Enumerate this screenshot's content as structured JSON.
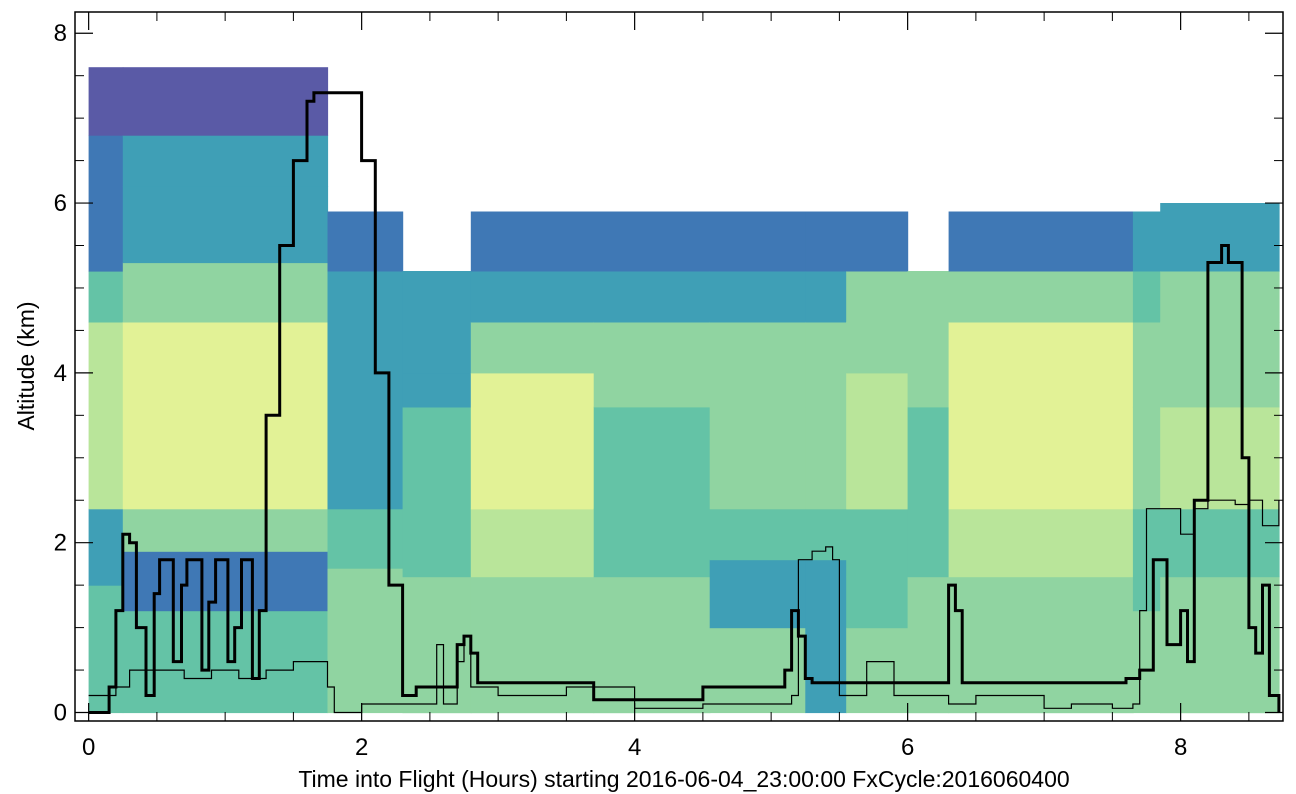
{
  "chart_data": {
    "type": "heatmap",
    "title": "",
    "xlabel": "Time into Flight (Hours) starting 2016-06-04_23:00:00  FxCycle:2016060400",
    "ylabel": "Altitude (km)",
    "xlim": [
      -0.1,
      8.75
    ],
    "ylim": [
      -0.1,
      8.25
    ],
    "x_ticks": [
      0,
      2,
      4,
      6,
      8
    ],
    "y_ticks": [
      0,
      2,
      4,
      6,
      8
    ],
    "colormap": [
      "#f3fab3",
      "#e2f296",
      "#b9e59a",
      "#90d4a1",
      "#64c3a6",
      "#3f9fb6",
      "#3f78b5",
      "#5a5aa6"
    ],
    "heatmap_columns": [
      {
        "x0": 0.0,
        "x1": 0.25,
        "bands": [
          [
            0.0,
            1.5,
            4
          ],
          [
            1.5,
            2.4,
            5
          ],
          [
            2.4,
            4.6,
            2
          ],
          [
            4.6,
            5.2,
            4
          ],
          [
            5.2,
            6.8,
            6
          ],
          [
            6.8,
            7.6,
            7
          ]
        ]
      },
      {
        "x0": 0.25,
        "x1": 1.75,
        "bands": [
          [
            0.0,
            1.2,
            4
          ],
          [
            1.2,
            1.9,
            6
          ],
          [
            1.9,
            2.4,
            3
          ],
          [
            2.4,
            4.6,
            1
          ],
          [
            4.6,
            5.3,
            3
          ],
          [
            5.3,
            6.2,
            5
          ],
          [
            6.2,
            6.8,
            5
          ],
          [
            6.8,
            7.6,
            7
          ]
        ]
      },
      {
        "x0": 1.75,
        "x1": 2.3,
        "bands": [
          [
            0.0,
            1.7,
            3
          ],
          [
            1.7,
            2.4,
            4
          ],
          [
            2.4,
            4.6,
            5
          ],
          [
            4.6,
            5.2,
            5
          ],
          [
            5.2,
            5.9,
            6
          ]
        ]
      },
      {
        "x0": 2.3,
        "x1": 2.8,
        "bands": [
          [
            0.0,
            1.6,
            3
          ],
          [
            1.6,
            2.4,
            4
          ],
          [
            2.4,
            3.6,
            4
          ],
          [
            3.6,
            4.0,
            5
          ],
          [
            4.0,
            4.6,
            5
          ],
          [
            4.6,
            5.2,
            5
          ]
        ]
      },
      {
        "x0": 2.8,
        "x1": 3.7,
        "bands": [
          [
            0.0,
            1.6,
            3
          ],
          [
            1.6,
            2.4,
            2
          ],
          [
            2.4,
            4.0,
            1
          ],
          [
            4.0,
            4.6,
            3
          ],
          [
            4.6,
            5.2,
            5
          ],
          [
            5.2,
            5.9,
            6
          ]
        ]
      },
      {
        "x0": 3.7,
        "x1": 4.55,
        "bands": [
          [
            0.0,
            1.6,
            3
          ],
          [
            1.6,
            2.4,
            4
          ],
          [
            2.4,
            3.6,
            4
          ],
          [
            3.6,
            4.6,
            3
          ],
          [
            4.6,
            5.2,
            5
          ],
          [
            5.2,
            5.9,
            6
          ]
        ]
      },
      {
        "x0": 4.55,
        "x1": 5.25,
        "bands": [
          [
            0.0,
            1.0,
            3
          ],
          [
            1.0,
            1.8,
            5
          ],
          [
            1.8,
            2.4,
            4
          ],
          [
            2.4,
            3.6,
            3
          ],
          [
            3.6,
            4.6,
            3
          ],
          [
            4.6,
            5.2,
            5
          ],
          [
            5.2,
            5.9,
            6
          ]
        ]
      },
      {
        "x0": 5.25,
        "x1": 5.55,
        "bands": [
          [
            0.0,
            1.8,
            5
          ],
          [
            1.8,
            2.4,
            4
          ],
          [
            2.4,
            3.6,
            3
          ],
          [
            3.6,
            4.6,
            3
          ],
          [
            4.6,
            5.2,
            5
          ],
          [
            5.2,
            5.9,
            6
          ]
        ]
      },
      {
        "x0": 5.55,
        "x1": 6.0,
        "bands": [
          [
            0.0,
            1.0,
            3
          ],
          [
            1.0,
            1.6,
            4
          ],
          [
            1.6,
            2.4,
            4
          ],
          [
            2.4,
            4.0,
            2
          ],
          [
            4.0,
            4.6,
            3
          ],
          [
            4.6,
            5.2,
            3
          ],
          [
            5.2,
            5.9,
            6
          ]
        ]
      },
      {
        "x0": 6.0,
        "x1": 6.3,
        "bands": [
          [
            0.0,
            1.6,
            3
          ],
          [
            1.6,
            2.4,
            4
          ],
          [
            2.4,
            3.6,
            4
          ],
          [
            3.6,
            4.6,
            3
          ],
          [
            4.6,
            5.2,
            3
          ]
        ]
      },
      {
        "x0": 6.3,
        "x1": 7.65,
        "bands": [
          [
            0.0,
            1.6,
            3
          ],
          [
            1.6,
            2.4,
            2
          ],
          [
            2.4,
            4.6,
            1
          ],
          [
            4.6,
            5.2,
            3
          ],
          [
            5.2,
            5.9,
            6
          ]
        ]
      },
      {
        "x0": 7.65,
        "x1": 7.85,
        "bands": [
          [
            0.0,
            1.2,
            3
          ],
          [
            1.2,
            2.4,
            4
          ],
          [
            2.4,
            3.6,
            3
          ],
          [
            3.6,
            4.6,
            3
          ],
          [
            4.6,
            5.2,
            4
          ],
          [
            5.2,
            5.9,
            5
          ]
        ]
      },
      {
        "x0": 7.85,
        "x1": 8.72,
        "bands": [
          [
            0.0,
            1.6,
            3
          ],
          [
            1.6,
            2.4,
            4
          ],
          [
            2.4,
            3.6,
            2
          ],
          [
            3.6,
            4.6,
            3
          ],
          [
            4.6,
            5.2,
            3
          ],
          [
            5.2,
            6.0,
            5
          ]
        ]
      }
    ],
    "series": [
      {
        "style": "thick",
        "x": [
          0.0,
          0.15,
          0.2,
          0.25,
          0.3,
          0.35,
          0.42,
          0.48,
          0.52,
          0.55,
          0.62,
          0.68,
          0.72,
          0.78,
          0.83,
          0.88,
          0.93,
          0.98,
          1.02,
          1.07,
          1.12,
          1.16,
          1.2,
          1.25,
          1.3,
          1.4,
          1.5,
          1.6,
          1.65,
          1.75,
          1.9,
          2.0,
          2.1,
          2.2,
          2.3,
          2.4,
          2.6,
          2.7,
          2.75,
          2.8,
          2.85,
          3.6,
          3.7,
          4.0,
          4.4,
          4.5,
          4.9,
          5.1,
          5.15,
          5.2,
          5.25,
          5.3,
          5.4,
          6.2,
          6.3,
          6.35,
          6.4,
          6.6,
          7.5,
          7.6,
          7.7,
          7.8,
          7.85,
          7.9,
          8.0,
          8.05,
          8.1,
          8.2,
          8.3,
          8.35,
          8.45,
          8.5,
          8.55,
          8.6,
          8.65,
          8.72
        ],
        "y": [
          0.0,
          0.3,
          1.2,
          2.1,
          2.0,
          1.0,
          0.2,
          1.4,
          1.8,
          1.8,
          0.6,
          1.5,
          1.8,
          1.8,
          0.5,
          1.3,
          1.8,
          1.8,
          0.6,
          1.0,
          1.8,
          1.8,
          0.4,
          1.2,
          3.5,
          5.5,
          6.5,
          7.2,
          7.3,
          7.3,
          7.3,
          6.5,
          4.0,
          1.5,
          0.2,
          0.3,
          0.3,
          0.8,
          0.9,
          0.7,
          0.35,
          0.35,
          0.15,
          0.15,
          0.15,
          0.3,
          0.3,
          0.5,
          1.2,
          0.9,
          0.4,
          0.35,
          0.35,
          0.35,
          1.5,
          1.2,
          0.35,
          0.35,
          0.35,
          0.4,
          0.5,
          1.8,
          1.8,
          0.8,
          1.2,
          0.6,
          2.5,
          5.3,
          5.5,
          5.3,
          3.0,
          1.0,
          0.7,
          1.5,
          0.2,
          0.0
        ]
      },
      {
        "style": "thin",
        "x": [
          0.0,
          0.2,
          0.3,
          0.5,
          0.7,
          0.9,
          1.1,
          1.3,
          1.5,
          1.6,
          1.7,
          1.75,
          1.8,
          1.9,
          2.0,
          2.2,
          2.5,
          2.55,
          2.6,
          2.7,
          2.75,
          2.8,
          3.0,
          3.5,
          4.0,
          4.5,
          5.0,
          5.15,
          5.2,
          5.3,
          5.4,
          5.45,
          5.5,
          5.7,
          5.9,
          6.0,
          6.3,
          6.5,
          7.0,
          7.2,
          7.5,
          7.65,
          7.7,
          7.75,
          7.8,
          7.9,
          8.0,
          8.1,
          8.2,
          8.3,
          8.4,
          8.5,
          8.6,
          8.72
        ],
        "y": [
          0.2,
          0.3,
          0.5,
          0.5,
          0.4,
          0.5,
          0.4,
          0.5,
          0.6,
          0.6,
          0.6,
          0.3,
          0.0,
          0.0,
          0.1,
          0.1,
          0.1,
          0.8,
          0.1,
          0.6,
          0.9,
          0.3,
          0.2,
          0.3,
          0.05,
          0.1,
          0.1,
          0.2,
          1.8,
          1.9,
          1.95,
          1.8,
          0.2,
          0.6,
          0.2,
          0.2,
          0.1,
          0.2,
          0.05,
          0.1,
          0.05,
          0.1,
          1.2,
          2.4,
          2.4,
          2.4,
          2.1,
          2.4,
          2.5,
          2.5,
          2.45,
          2.5,
          2.2,
          2.5
        ]
      }
    ]
  }
}
